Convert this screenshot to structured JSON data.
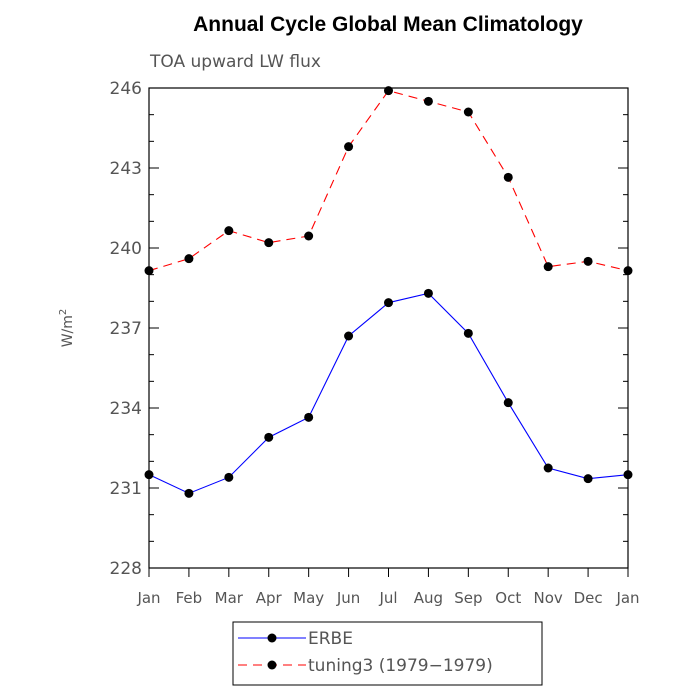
{
  "chart_data": {
    "type": "line",
    "title": "Annual Cycle Global Mean Climatology",
    "subtitle": "TOA upward LW flux",
    "ylabel_base": "W/m",
    "ylabel_sup": "2",
    "xlabel": "",
    "categories": [
      "Jan",
      "Feb",
      "Mar",
      "Apr",
      "May",
      "Jun",
      "Jul",
      "Aug",
      "Sep",
      "Oct",
      "Nov",
      "Dec",
      "Jan"
    ],
    "ylim": [
      228,
      246
    ],
    "yticks": [
      228,
      231,
      234,
      237,
      240,
      243,
      246
    ],
    "grid": false,
    "legend_placement": "bottom",
    "series": [
      {
        "name": "ERBE",
        "color": "#0000ff",
        "dash": "solid",
        "marker": "filled-circle",
        "values": [
          231.5,
          230.8,
          231.4,
          232.9,
          233.65,
          236.7,
          237.95,
          238.3,
          236.8,
          234.2,
          231.75,
          231.35,
          231.5
        ]
      },
      {
        "name": "tuning3 (1979−1979)",
        "color": "#ff0000",
        "dash": "dashed",
        "marker": "filled-circle",
        "values": [
          239.15,
          239.6,
          240.65,
          240.2,
          240.45,
          243.8,
          245.9,
          245.5,
          245.1,
          242.65,
          239.3,
          239.5,
          239.15
        ]
      }
    ]
  }
}
